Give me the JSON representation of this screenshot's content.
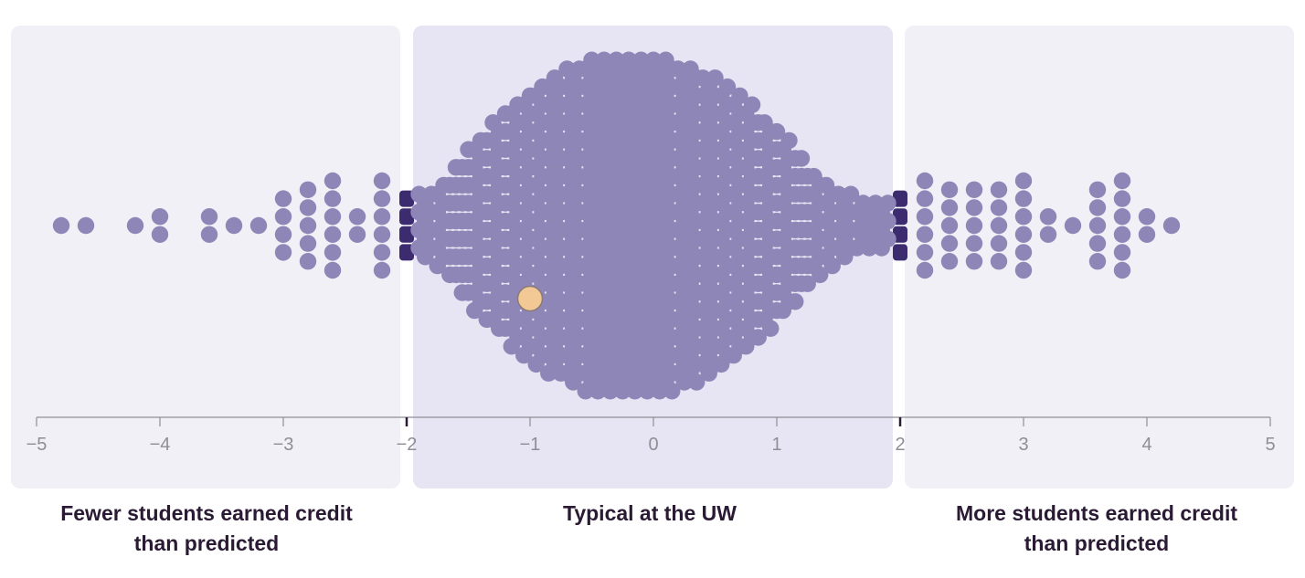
{
  "chart_data": {
    "type": "scatter",
    "subtype": "beeswarm",
    "xlim": [
      -5,
      5
    ],
    "x_ticks": [
      "−5",
      "−4",
      "−3",
      "−2",
      "−1",
      "0",
      "1",
      "2",
      "3",
      "4",
      "5"
    ],
    "x_tick_values": [
      -5,
      -4,
      -3,
      -2,
      -1,
      0,
      1,
      2,
      3,
      4,
      5
    ],
    "grid": false,
    "regions": [
      {
        "range": [
          -5.2,
          -2.05
        ],
        "label": "Fewer students earned credit than predicted",
        "color": "#f1f0f6"
      },
      {
        "range": [
          -1.95,
          1.95
        ],
        "label": "Typical at the UW",
        "color": "#e7e4f3"
      },
      {
        "range": [
          2.05,
          5.2
        ],
        "label": "More students earned credit than predicted",
        "color": "#f1f0f6"
      }
    ],
    "threshold_values": [
      -2,
      2
    ],
    "dot_color": "#8f86b8",
    "threshold_dot_color": "#3d2b70",
    "highlight_color": "#f2c994",
    "highlight": {
      "x": -1.0
    },
    "side_points": [
      -4.8,
      -4.6,
      -4.2,
      -4.0,
      -4.0,
      -3.6,
      -3.6,
      -3.4,
      -3.2,
      -3.0,
      -3.0,
      -3.0,
      -3.0,
      -2.8,
      -2.8,
      -2.8,
      -2.8,
      -2.8,
      -2.6,
      -2.6,
      -2.6,
      -2.6,
      -2.6,
      -2.6,
      -2.4,
      -2.4,
      -2.2,
      -2.2,
      -2.2,
      -2.2,
      -2.2,
      -2.2,
      -2.0,
      -2.0,
      -2.0,
      -2.0,
      2.0,
      2.0,
      2.0,
      2.0,
      2.2,
      2.2,
      2.2,
      2.2,
      2.2,
      2.2,
      2.4,
      2.4,
      2.4,
      2.4,
      2.4,
      2.6,
      2.6,
      2.6,
      2.6,
      2.6,
      2.8,
      2.8,
      2.8,
      2.8,
      2.8,
      3.0,
      3.0,
      3.0,
      3.0,
      3.0,
      3.0,
      3.2,
      3.2,
      3.4,
      3.6,
      3.6,
      3.6,
      3.6,
      3.6,
      3.8,
      3.8,
      3.8,
      3.8,
      3.8,
      3.8,
      4.0,
      4.0,
      4.2
    ],
    "middle_counts": {
      "start": -1.9,
      "step": 0.05,
      "counts": [
        4,
        4,
        4,
        5,
        5,
        6,
        7,
        8,
        9,
        10,
        10,
        11,
        12,
        12,
        13,
        14,
        14,
        15,
        15,
        16,
        16,
        17,
        17,
        17,
        18,
        18,
        18,
        19,
        19,
        19,
        19,
        19,
        19,
        19,
        19,
        19,
        19,
        19,
        19,
        19,
        19,
        19,
        18,
        18,
        18,
        18,
        17,
        17,
        17,
        16,
        16,
        15,
        15,
        14,
        14,
        13,
        12,
        12,
        11,
        10,
        10,
        9,
        8,
        7,
        6,
        6,
        5,
        5,
        4,
        4,
        4,
        3,
        3,
        3,
        3,
        3,
        3
      ]
    }
  },
  "captions": {
    "left": "Fewer students earned credit than predicted",
    "middle": "Typical at the UW",
    "right": "More students earned credit than predicted"
  }
}
